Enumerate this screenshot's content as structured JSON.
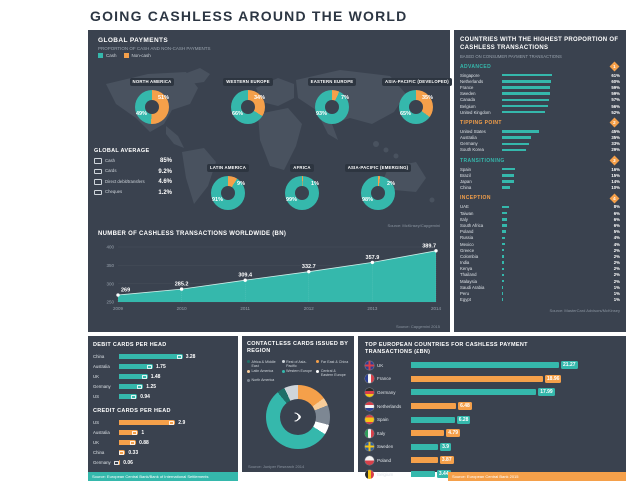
{
  "title": "GOING CASHLESS AROUND THE WORLD",
  "palette": {
    "teal": "#35b8ac",
    "orange": "#f5a04a",
    "peach": "#f8cd9a",
    "darkteal": "#1f6f68",
    "gray": "#7d8793",
    "lightgray": "#cfd5da",
    "white": "#ffffff",
    "bg": "#3a424f"
  },
  "global_payments": {
    "title": "GLOBAL PAYMENTS",
    "subtitle": "PROPORTION OF CASH AND NON-CASH PAYMENTS",
    "legend": [
      "Cash",
      "Non-cash"
    ],
    "global_average_title": "GLOBAL AVERAGE",
    "source": "Source: McKinsey/Capgemini"
  },
  "transactions_chart": {
    "title": "NUMBER OF CASHLESS TRANSACTIONS WORLDWIDE (BN)",
    "source": "Source: Capgemini 2015"
  },
  "sidebar": {
    "title": "COUNTRIES WITH THE HIGHEST PROPORTION OF CASHLESS TRANSACTIONS",
    "subtitle": "BASED ON CONSUMER PAYMENT TRANSACTIONS",
    "source": "Source: MasterCard Advisors/McKinsey",
    "groups": [
      {
        "label": "ADVANCED",
        "badge": "1",
        "color": "teal",
        "rows": [
          [
            "Singapore",
            "61%"
          ],
          [
            "Netherlands",
            "60%"
          ],
          [
            "France",
            "59%"
          ],
          [
            "Sweden",
            "59%"
          ],
          [
            "Canada",
            "57%"
          ],
          [
            "Belgium",
            "56%"
          ],
          [
            "United Kingdom",
            "52%"
          ]
        ]
      },
      {
        "label": "TIPPING POINT",
        "badge": "2",
        "color": "orange",
        "rows": [
          [
            "United States",
            "45%"
          ],
          [
            "Australia",
            "35%"
          ],
          [
            "Germany",
            "33%"
          ],
          [
            "South Korea",
            "29%"
          ]
        ]
      },
      {
        "label": "TRANSITIONING",
        "badge": "3",
        "color": "teal",
        "rows": [
          [
            "Spain",
            "16%"
          ],
          [
            "Brazil",
            "15%"
          ],
          [
            "Japan",
            "14%"
          ],
          [
            "China",
            "10%"
          ]
        ]
      },
      {
        "label": "INCEPTION",
        "badge": "4",
        "color": "orange",
        "rows": [
          [
            "UAE",
            "8%"
          ],
          [
            "Taiwan",
            "6%"
          ],
          [
            "Italy",
            "6%"
          ],
          [
            "South Africa",
            "6%"
          ],
          [
            "Poland",
            "5%"
          ],
          [
            "Russia",
            "4%"
          ],
          [
            "Mexico",
            "4%"
          ],
          [
            "Greece",
            "2%"
          ],
          [
            "Colombia",
            "2%"
          ],
          [
            "India",
            "2%"
          ],
          [
            "Kenya",
            "2%"
          ],
          [
            "Thailand",
            "2%"
          ],
          [
            "Malaysia",
            "2%"
          ],
          [
            "Saudi Arabia",
            "1%"
          ],
          [
            "Peru",
            "1%"
          ],
          [
            "Egypt",
            "1%"
          ]
        ]
      }
    ]
  },
  "debit_cards": {
    "title": "DEBIT CARDS PER HEAD",
    "source": "Source: European Central Bank/Bank of International Settlements"
  },
  "credit_cards": {
    "title": "CREDIT CARDS PER HEAD"
  },
  "contactless": {
    "title": "CONTACTLESS CARDS ISSUED BY REGION",
    "source": "Source: Juniper Research 2014",
    "items": [
      {
        "label": "Africa & Middle East",
        "color": "darkteal"
      },
      {
        "label": "Rest of Asia-Pacific",
        "color": "lightgray"
      },
      {
        "label": "Far East & China",
        "color": "orange"
      },
      {
        "label": "Latin America",
        "color": "peach"
      },
      {
        "label": "Western Europe",
        "color": "teal"
      },
      {
        "label": "Central & Eastern Europe",
        "color": "white"
      },
      {
        "label": "North America",
        "color": "gray"
      }
    ]
  },
  "european": {
    "title": "TOP EUROPEAN COUNTRIES FOR CASHLESS PAYMENT TRANSACTIONS (£BN)",
    "source": "Source: European Central Bank 2015",
    "flags": [
      "uk",
      "fr",
      "de",
      "nl",
      "es",
      "it",
      "se",
      "pl",
      "be"
    ]
  },
  "chart_data": [
    {
      "type": "pie",
      "name": "regional_cash_vs_noncash",
      "title": "Proportion of cash and non-cash payments by region",
      "legend": [
        "Cash",
        "Non-cash"
      ],
      "series": [
        {
          "name": "NORTH AMERICA",
          "values": [
            49,
            51
          ]
        },
        {
          "name": "WESTERN EUROPE",
          "values": [
            66,
            34
          ]
        },
        {
          "name": "EASTERN EUROPE",
          "values": [
            93,
            7
          ]
        },
        {
          "name": "ASIA-PACIFIC (DEVELOPED)",
          "values": [
            65,
            35
          ]
        },
        {
          "name": "LATIN AMERICA",
          "values": [
            91,
            9
          ]
        },
        {
          "name": "AFRICA",
          "values": [
            99,
            1
          ]
        },
        {
          "name": "ASIA-PACIFIC (EMERGING)",
          "values": [
            98,
            2
          ]
        }
      ]
    },
    {
      "type": "table",
      "name": "global_average",
      "title": "GLOBAL AVERAGE",
      "rows": [
        [
          "Cash",
          "85%"
        ],
        [
          "Cards",
          "9.2%"
        ],
        [
          "Direct debit/transfers",
          "4.6%"
        ],
        [
          "Cheques",
          "1.2%"
        ]
      ]
    },
    {
      "type": "area",
      "name": "cashless_transactions_worldwide_bn",
      "title": "NUMBER OF CASHLESS TRANSACTIONS WORLDWIDE (BN)",
      "x": [
        "2009",
        "2010",
        "2011",
        "2012",
        "2013",
        "2014"
      ],
      "values": [
        269,
        285.2,
        309.4,
        332.7,
        357.9,
        389.7
      ],
      "ylim": [
        250,
        400
      ],
      "yticks": [
        250,
        300,
        350,
        400
      ]
    },
    {
      "type": "bar",
      "name": "debit_cards_per_head",
      "title": "DEBIT CARDS PER HEAD",
      "categories": [
        "China",
        "Australia",
        "UK",
        "Germany",
        "US"
      ],
      "values": [
        3.28,
        1.75,
        1.48,
        1.25,
        0.94
      ]
    },
    {
      "type": "bar",
      "name": "credit_cards_per_head",
      "title": "CREDIT CARDS PER HEAD",
      "categories": [
        "US",
        "Australia",
        "UK",
        "China",
        "Germany"
      ],
      "values": [
        2.9,
        1,
        0.88,
        0.33,
        0.06
      ]
    },
    {
      "type": "pie",
      "name": "contactless_cards_by_region",
      "title": "CONTACTLESS CARDS ISSUED BY REGION",
      "categories": [
        "Far East & China",
        "Latin America",
        "North America",
        "Central & Eastern Europe",
        "Western Europe",
        "Africa & Middle East",
        "Rest of Asia-Pacific"
      ],
      "values": [
        15,
        4,
        10,
        5,
        55,
        4,
        7
      ],
      "note": "segment sizes estimated from the donut"
    },
    {
      "type": "bar",
      "name": "top_european_cashless_gbp_bn",
      "title": "TOP EUROPEAN COUNTRIES FOR CASHLESS PAYMENT TRANSACTIONS (£BN)",
      "categories": [
        "UK",
        "France",
        "Germany",
        "Netherlands",
        "Spain",
        "Italy",
        "Sweden",
        "Poland",
        "Belgium"
      ],
      "values": [
        21.27,
        18.96,
        17.99,
        6.48,
        6.28,
        4.79,
        3.9,
        3.87,
        3.44
      ]
    }
  ]
}
